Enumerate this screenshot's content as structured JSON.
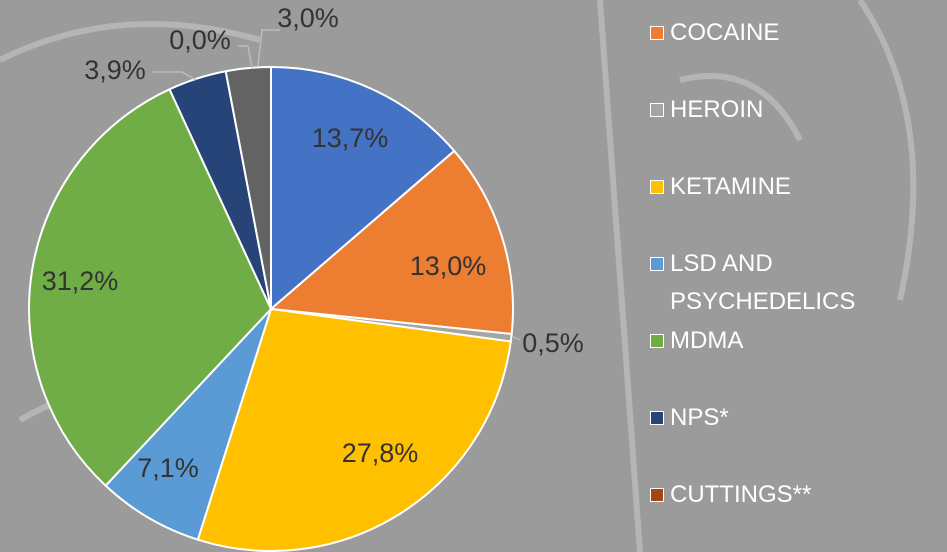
{
  "chart_data": {
    "type": "pie",
    "categories": [
      null,
      "COCAINE",
      "HEROIN",
      "KETAMINE",
      "LSD AND PSYCHEDELICS",
      "MDMA",
      "NPS*",
      "CUTTINGS**",
      null
    ],
    "values": [
      13.7,
      13.0,
      0.5,
      27.8,
      7.1,
      31.2,
      3.9,
      0.0,
      3.0
    ],
    "value_labels": [
      "13,7%",
      "13,0%",
      "0,5%",
      "27,8%",
      "7,1%",
      "31,2%",
      "3,9%",
      "0,0%",
      "3,0%"
    ],
    "colors": [
      "#4472c4",
      "#ed7d31",
      "#a5a5a5",
      "#ffc000",
      "#5b9bd5",
      "#70ad47",
      "#264478",
      "#9e480e",
      "#636363"
    ],
    "legend": "right"
  }
}
